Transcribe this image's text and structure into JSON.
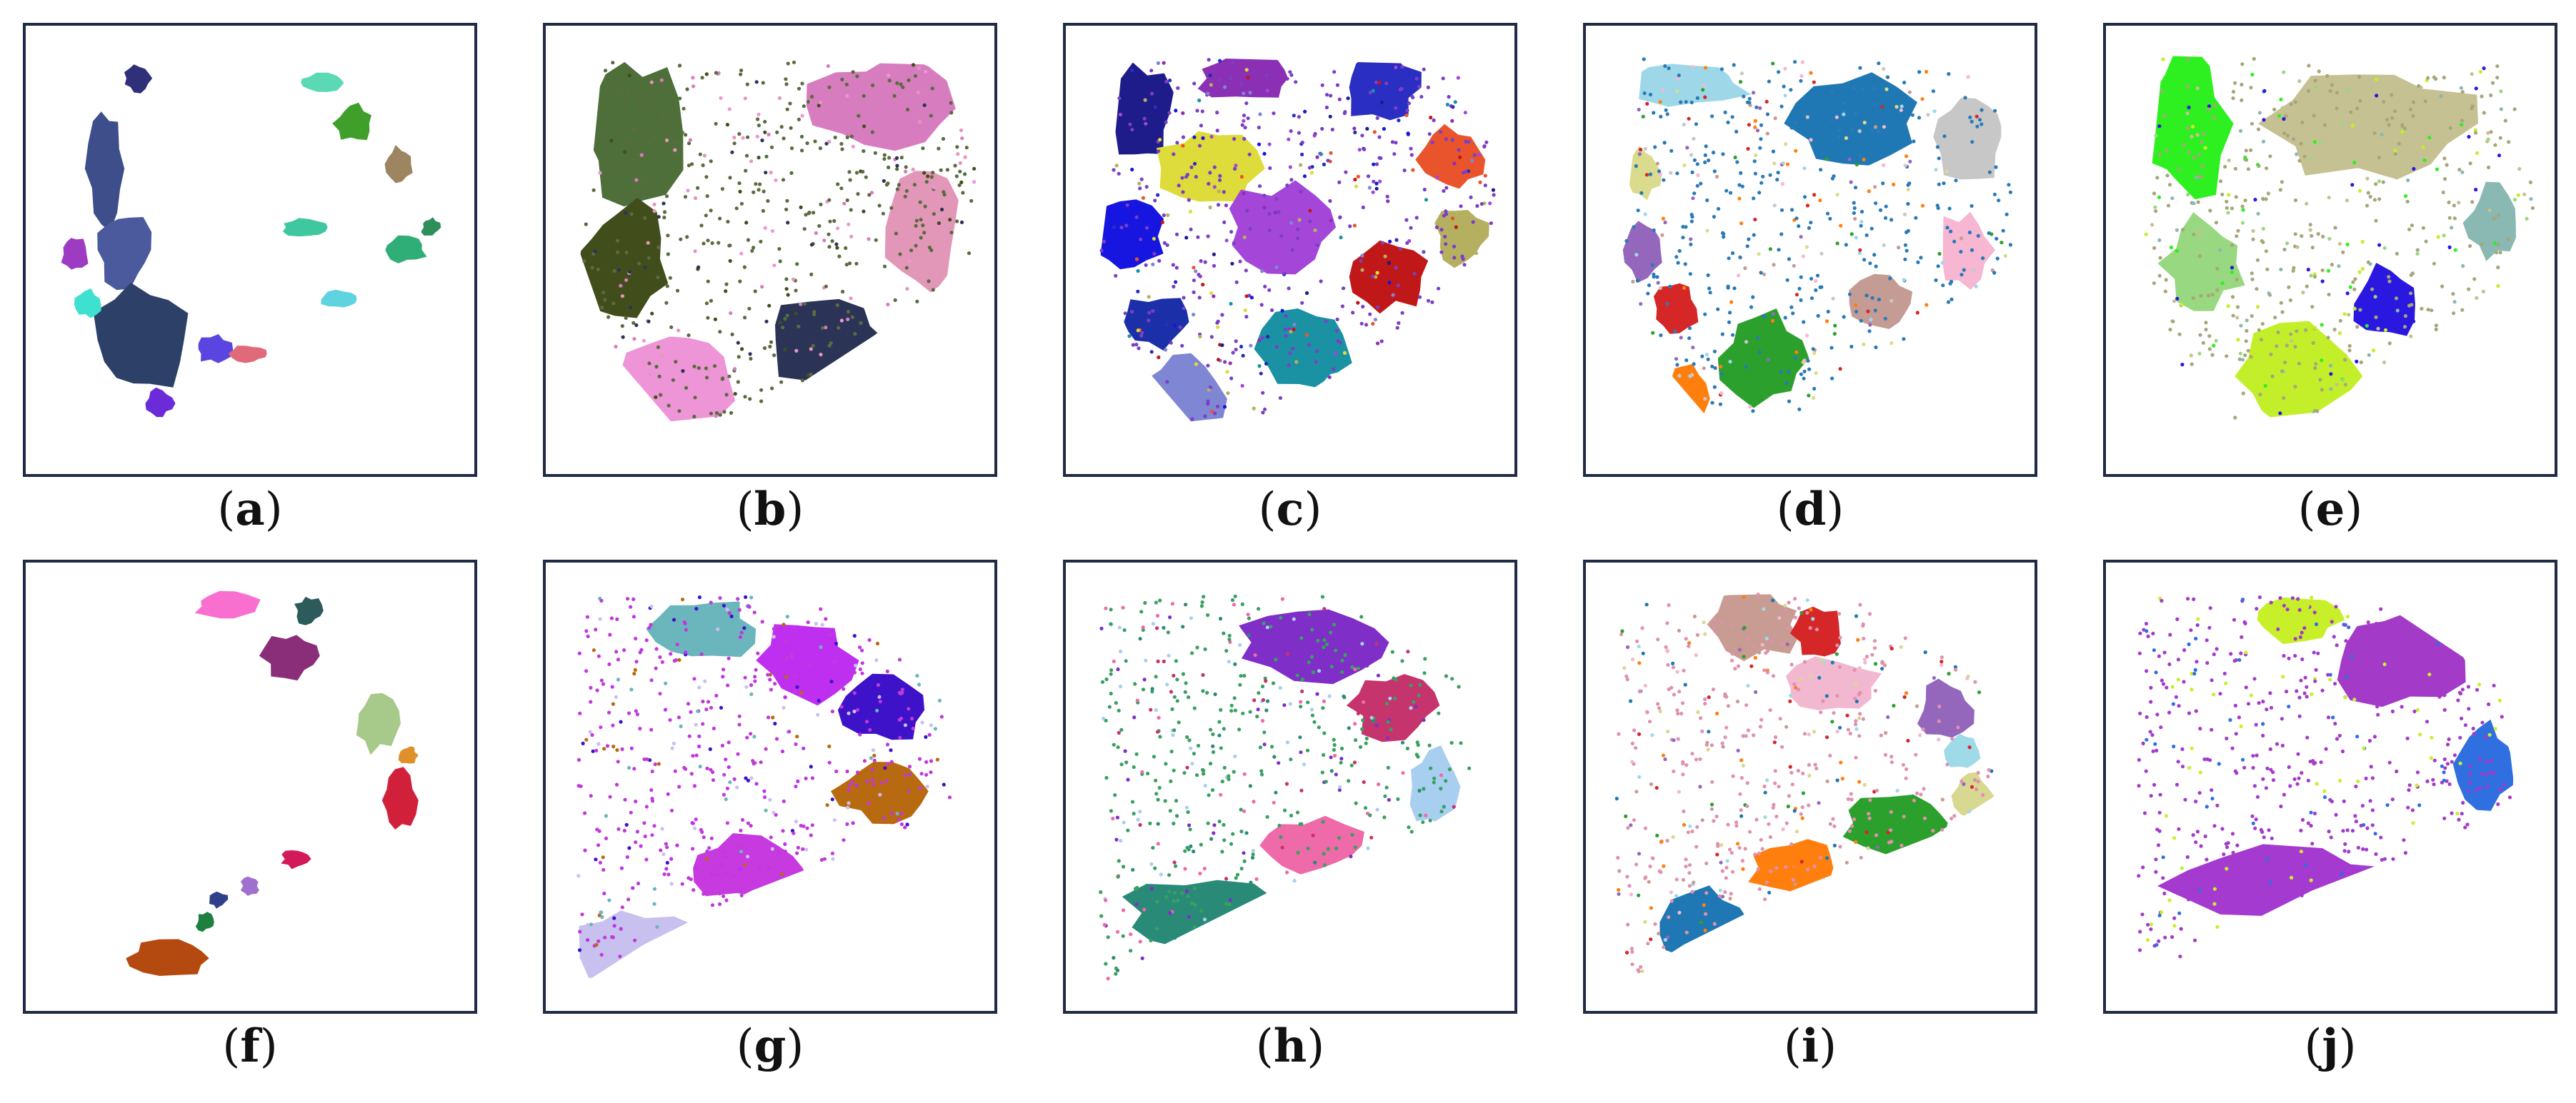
{
  "chart_data": {
    "type": "scatter",
    "panels": [
      {
        "label": "a",
        "kind": "curve",
        "point_color": "#3b5bb5",
        "clusters": [
          {
            "color": "#3d4e8a"
          },
          {
            "color": "#4a5a9c"
          },
          {
            "color": "#2c4068"
          },
          {
            "color": "#2f2f7a"
          },
          {
            "color": "#9d3bc2"
          },
          {
            "color": "#3ee0d0"
          },
          {
            "color": "#6c2bd9"
          },
          {
            "color": "#5a45e0"
          },
          {
            "color": "#e06a7a"
          },
          {
            "color": "#3fc7a0"
          },
          {
            "color": "#5fd3e0"
          },
          {
            "color": "#2fae78"
          },
          {
            "color": "#3f9f2a"
          },
          {
            "color": "#9c8560"
          },
          {
            "color": "#5bd9b5"
          },
          {
            "color": "#2e8f5a"
          }
        ]
      },
      {
        "label": "b",
        "kind": "region",
        "point_color": "#5c6a40",
        "clusters": [
          {
            "color": "#4e6f3a"
          },
          {
            "color": "#424d1c"
          },
          {
            "color": "#ee95d8"
          },
          {
            "color": "#2b3456"
          },
          {
            "color": "#d77cbf"
          },
          {
            "color": "#e397b8"
          }
        ]
      },
      {
        "label": "c",
        "kind": "region",
        "point_color": "#7b3fc4",
        "clusters": [
          {
            "color": "#1e1b8a"
          },
          {
            "color": "#8b2fb5"
          },
          {
            "color": "#2a2ec2"
          },
          {
            "color": "#e9542d"
          },
          {
            "color": "#1715e0"
          },
          {
            "color": "#dedc3a"
          },
          {
            "color": "#a447d8"
          },
          {
            "color": "#b5b060"
          },
          {
            "color": "#1b2fa8"
          },
          {
            "color": "#c01818"
          },
          {
            "color": "#7f86d4"
          },
          {
            "color": "#1a92a4"
          }
        ]
      },
      {
        "label": "d",
        "kind": "region",
        "point_color": "#2a7ab8",
        "clusters": [
          {
            "color": "#9ed8e8"
          },
          {
            "color": "#1f77b4"
          },
          {
            "color": "#c7c7c7"
          },
          {
            "color": "#dbdb8d"
          },
          {
            "color": "#9467bd"
          },
          {
            "color": "#d62728"
          },
          {
            "color": "#f7b6d2"
          },
          {
            "color": "#c49c94"
          },
          {
            "color": "#ff7f0e"
          },
          {
            "color": "#2ca02c"
          }
        ]
      },
      {
        "label": "e",
        "kind": "region",
        "point_color": "#a7a67a",
        "clusters": [
          {
            "color": "#2ef020"
          },
          {
            "color": "#c5c192"
          },
          {
            "color": "#8ab8b2"
          },
          {
            "color": "#98d880"
          },
          {
            "color": "#2a18e0"
          },
          {
            "color": "#c3ef2a"
          }
        ]
      },
      {
        "label": "f",
        "kind": "curve",
        "point_color": "#a03070",
        "clusters": [
          {
            "color": "#f86fd0"
          },
          {
            "color": "#2d5a5a"
          },
          {
            "color": "#8b2e7a"
          },
          {
            "color": "#a7c98a"
          },
          {
            "color": "#e0902a"
          },
          {
            "color": "#d1213a"
          },
          {
            "color": "#d21a5a"
          },
          {
            "color": "#a070d0"
          },
          {
            "color": "#2f3f8a"
          },
          {
            "color": "#1e8040"
          },
          {
            "color": "#b54a10"
          }
        ]
      },
      {
        "label": "g",
        "kind": "region",
        "point_color": "#c03ad8",
        "clusters": [
          {
            "color": "#6bb5bd"
          },
          {
            "color": "#bf2ff0"
          },
          {
            "color": "#3d12c8"
          },
          {
            "color": "#b86a10"
          },
          {
            "color": "#c63ae0"
          },
          {
            "color": "#c8c0ee"
          }
        ]
      },
      {
        "label": "h",
        "kind": "region",
        "point_color": "#38a060",
        "clusters": [
          {
            "color": "#7f2ec8"
          },
          {
            "color": "#c5346c"
          },
          {
            "color": "#a8cef0"
          },
          {
            "color": "#ee6aa8"
          },
          {
            "color": "#2a8a78"
          }
        ]
      },
      {
        "label": "i",
        "kind": "region",
        "point_color": "#e090b0",
        "clusters": [
          {
            "color": "#c89c92"
          },
          {
            "color": "#d62728"
          },
          {
            "color": "#f2b8d0"
          },
          {
            "color": "#9467bd"
          },
          {
            "color": "#9edae8"
          },
          {
            "color": "#d8d890"
          },
          {
            "color": "#2ca02c"
          },
          {
            "color": "#ff7f0e"
          },
          {
            "color": "#1f77b4"
          }
        ]
      },
      {
        "label": "j",
        "kind": "region",
        "point_color": "#a53ac8",
        "clusters": [
          {
            "color": "#c8f02a"
          },
          {
            "color": "#a33ac8"
          },
          {
            "color": "#2f6fe0"
          },
          {
            "color": "#a43ad0"
          }
        ]
      }
    ]
  }
}
